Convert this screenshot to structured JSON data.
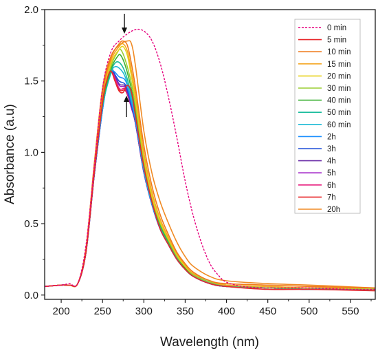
{
  "chart_data": {
    "type": "line",
    "xlabel": "Wavelength (nm)",
    "ylabel": "Absorbance (a.u)",
    "xlim": [
      180,
      580
    ],
    "ylim": [
      -0.03,
      2.0
    ],
    "x_ticks": [
      200,
      250,
      300,
      350,
      400,
      450,
      500,
      550
    ],
    "y_ticks": [
      0.0,
      0.5,
      1.0,
      1.5,
      2.0
    ],
    "x_tick_labels": [
      "200",
      "250",
      "300",
      "350",
      "400",
      "450",
      "500",
      "550"
    ],
    "y_tick_labels": [
      "0.0",
      "0.5",
      "1.0",
      "1.5",
      "2.0"
    ],
    "grid": false,
    "legend_position": "top-right",
    "series": [
      {
        "name": "0 min",
        "color": "#e6007e",
        "dashed": true,
        "x": [
          180,
          200,
          210,
          220,
          230,
          240,
          250,
          260,
          270,
          280,
          290,
          300,
          310,
          320,
          330,
          340,
          350,
          360,
          370,
          380,
          390,
          400,
          420,
          450,
          500,
          550,
          580
        ],
        "y": [
          0.06,
          0.07,
          0.08,
          0.08,
          0.35,
          0.9,
          1.45,
          1.7,
          1.78,
          1.83,
          1.86,
          1.85,
          1.78,
          1.62,
          1.38,
          1.1,
          0.8,
          0.55,
          0.36,
          0.22,
          0.14,
          0.09,
          0.06,
          0.05,
          0.05,
          0.04,
          0.04
        ]
      },
      {
        "name": "5 min",
        "color": "#e8272a",
        "x": [
          180,
          200,
          210,
          220,
          230,
          240,
          250,
          255,
          260,
          265,
          270,
          275,
          280,
          285,
          290,
          300,
          310,
          320,
          330,
          340,
          350,
          360,
          380,
          400,
          450,
          500,
          580
        ],
        "y": [
          0.06,
          0.07,
          0.07,
          0.08,
          0.3,
          0.85,
          1.35,
          1.5,
          1.57,
          1.5,
          1.43,
          1.42,
          1.47,
          1.42,
          1.25,
          0.9,
          0.65,
          0.46,
          0.35,
          0.25,
          0.18,
          0.13,
          0.08,
          0.06,
          0.04,
          0.04,
          0.03
        ]
      },
      {
        "name": "10 min",
        "color": "#ef7a1a",
        "x": [
          180,
          200,
          210,
          220,
          230,
          240,
          250,
          260,
          270,
          275,
          280,
          285,
          290,
          300,
          310,
          320,
          330,
          340,
          350,
          360,
          380,
          400,
          450,
          500,
          580
        ],
        "y": [
          0.06,
          0.07,
          0.07,
          0.08,
          0.32,
          0.9,
          1.42,
          1.66,
          1.76,
          1.78,
          1.75,
          1.62,
          1.45,
          1.05,
          0.76,
          0.56,
          0.42,
          0.3,
          0.22,
          0.16,
          0.1,
          0.08,
          0.07,
          0.06,
          0.05
        ]
      },
      {
        "name": "15 min",
        "color": "#f5a623",
        "x": [
          180,
          200,
          210,
          220,
          230,
          240,
          250,
          260,
          270,
          275,
          280,
          285,
          290,
          300,
          310,
          320,
          330,
          340,
          350,
          360,
          380,
          400,
          450,
          500,
          580
        ],
        "y": [
          0.06,
          0.07,
          0.07,
          0.08,
          0.32,
          0.88,
          1.4,
          1.64,
          1.74,
          1.76,
          1.71,
          1.57,
          1.4,
          1.0,
          0.72,
          0.53,
          0.4,
          0.29,
          0.21,
          0.15,
          0.1,
          0.07,
          0.06,
          0.05,
          0.05
        ]
      },
      {
        "name": "20 min",
        "color": "#e8d21a",
        "x": [
          180,
          200,
          210,
          220,
          230,
          240,
          250,
          260,
          270,
          275,
          280,
          285,
          290,
          300,
          310,
          320,
          330,
          340,
          350,
          360,
          380,
          400,
          450,
          500,
          580
        ],
        "y": [
          0.06,
          0.07,
          0.07,
          0.08,
          0.32,
          0.88,
          1.38,
          1.62,
          1.72,
          1.74,
          1.68,
          1.53,
          1.36,
          0.97,
          0.69,
          0.51,
          0.39,
          0.28,
          0.2,
          0.15,
          0.1,
          0.07,
          0.06,
          0.05,
          0.05
        ]
      },
      {
        "name": "30 min",
        "color": "#9acd32",
        "x": [
          180,
          200,
          210,
          220,
          230,
          240,
          250,
          260,
          268,
          272,
          278,
          285,
          290,
          300,
          310,
          320,
          330,
          340,
          350,
          360,
          380,
          400,
          450,
          500,
          580
        ],
        "y": [
          0.06,
          0.07,
          0.07,
          0.08,
          0.31,
          0.87,
          1.36,
          1.6,
          1.7,
          1.72,
          1.64,
          1.48,
          1.32,
          0.94,
          0.67,
          0.5,
          0.38,
          0.27,
          0.2,
          0.14,
          0.09,
          0.07,
          0.05,
          0.05,
          0.04
        ]
      },
      {
        "name": "40 min",
        "color": "#3cb034",
        "x": [
          180,
          200,
          210,
          220,
          230,
          240,
          250,
          260,
          268,
          272,
          278,
          285,
          290,
          300,
          310,
          320,
          330,
          340,
          350,
          360,
          380,
          400,
          450,
          500,
          580
        ],
        "y": [
          0.06,
          0.07,
          0.07,
          0.08,
          0.31,
          0.86,
          1.34,
          1.58,
          1.67,
          1.68,
          1.6,
          1.44,
          1.29,
          0.92,
          0.66,
          0.49,
          0.37,
          0.27,
          0.19,
          0.14,
          0.09,
          0.07,
          0.05,
          0.05,
          0.04
        ]
      },
      {
        "name": "50 min",
        "color": "#1abc9c",
        "x": [
          180,
          200,
          210,
          220,
          230,
          240,
          250,
          260,
          266,
          272,
          278,
          285,
          290,
          300,
          310,
          320,
          330,
          340,
          350,
          360,
          380,
          400,
          450,
          500,
          580
        ],
        "y": [
          0.06,
          0.07,
          0.07,
          0.08,
          0.31,
          0.86,
          1.33,
          1.56,
          1.63,
          1.62,
          1.55,
          1.4,
          1.26,
          0.9,
          0.65,
          0.48,
          0.36,
          0.26,
          0.19,
          0.14,
          0.09,
          0.06,
          0.05,
          0.04,
          0.04
        ]
      },
      {
        "name": "60 min",
        "color": "#1fbad6",
        "x": [
          180,
          200,
          210,
          220,
          230,
          240,
          250,
          260,
          265,
          272,
          278,
          285,
          290,
          300,
          310,
          320,
          330,
          340,
          350,
          360,
          380,
          400,
          450,
          500,
          580
        ],
        "y": [
          0.06,
          0.07,
          0.07,
          0.08,
          0.3,
          0.85,
          1.32,
          1.55,
          1.6,
          1.58,
          1.52,
          1.37,
          1.24,
          0.88,
          0.64,
          0.47,
          0.35,
          0.25,
          0.18,
          0.13,
          0.09,
          0.06,
          0.05,
          0.04,
          0.04
        ]
      },
      {
        "name": "2h",
        "color": "#1e90ff",
        "x": [
          180,
          200,
          210,
          220,
          230,
          240,
          250,
          258,
          263,
          270,
          278,
          285,
          290,
          300,
          310,
          320,
          330,
          340,
          350,
          360,
          380,
          400,
          450,
          500,
          580
        ],
        "y": [
          0.06,
          0.07,
          0.07,
          0.08,
          0.3,
          0.85,
          1.3,
          1.54,
          1.57,
          1.53,
          1.5,
          1.35,
          1.22,
          0.87,
          0.63,
          0.46,
          0.35,
          0.25,
          0.18,
          0.13,
          0.08,
          0.06,
          0.05,
          0.04,
          0.04
        ]
      },
      {
        "name": "3h",
        "color": "#1f4fd8",
        "x": [
          180,
          200,
          210,
          220,
          230,
          240,
          250,
          258,
          262,
          270,
          278,
          285,
          290,
          300,
          310,
          320,
          330,
          340,
          350,
          360,
          380,
          400,
          450,
          500,
          580
        ],
        "y": [
          0.06,
          0.07,
          0.07,
          0.08,
          0.3,
          0.84,
          1.3,
          1.55,
          1.57,
          1.5,
          1.47,
          1.33,
          1.21,
          0.87,
          0.63,
          0.46,
          0.35,
          0.25,
          0.18,
          0.13,
          0.08,
          0.06,
          0.05,
          0.04,
          0.04
        ]
      },
      {
        "name": "4h",
        "color": "#6a2ea8",
        "x": [
          180,
          200,
          210,
          220,
          230,
          240,
          250,
          258,
          262,
          270,
          278,
          285,
          290,
          300,
          310,
          320,
          330,
          340,
          350,
          360,
          380,
          400,
          450,
          500,
          580
        ],
        "y": [
          0.06,
          0.07,
          0.07,
          0.08,
          0.3,
          0.84,
          1.3,
          1.55,
          1.58,
          1.48,
          1.46,
          1.32,
          1.2,
          0.86,
          0.63,
          0.46,
          0.35,
          0.25,
          0.18,
          0.13,
          0.08,
          0.06,
          0.05,
          0.04,
          0.04
        ]
      },
      {
        "name": "5h",
        "color": "#a020c8",
        "x": [
          180,
          200,
          210,
          220,
          230,
          240,
          250,
          258,
          262,
          270,
          278,
          285,
          290,
          300,
          310,
          320,
          330,
          340,
          350,
          360,
          380,
          400,
          450,
          500,
          580
        ],
        "y": [
          0.06,
          0.07,
          0.07,
          0.08,
          0.3,
          0.84,
          1.31,
          1.56,
          1.58,
          1.47,
          1.45,
          1.31,
          1.2,
          0.86,
          0.63,
          0.46,
          0.35,
          0.25,
          0.18,
          0.13,
          0.08,
          0.06,
          0.05,
          0.04,
          0.04
        ]
      },
      {
        "name": "6h",
        "color": "#e6187a",
        "x": [
          180,
          200,
          210,
          220,
          230,
          240,
          250,
          258,
          261,
          270,
          278,
          285,
          290,
          300,
          310,
          320,
          330,
          340,
          350,
          360,
          380,
          400,
          450,
          500,
          580
        ],
        "y": [
          0.06,
          0.07,
          0.07,
          0.08,
          0.3,
          0.84,
          1.31,
          1.56,
          1.58,
          1.45,
          1.44,
          1.31,
          1.2,
          0.86,
          0.63,
          0.46,
          0.35,
          0.25,
          0.18,
          0.13,
          0.08,
          0.06,
          0.05,
          0.04,
          0.04
        ]
      },
      {
        "name": "7h",
        "color": "#e8272a",
        "x": [
          180,
          200,
          210,
          220,
          230,
          240,
          250,
          258,
          261,
          270,
          278,
          285,
          290,
          300,
          310,
          320,
          330,
          340,
          350,
          360,
          380,
          400,
          450,
          500,
          580
        ],
        "y": [
          0.06,
          0.07,
          0.07,
          0.08,
          0.3,
          0.84,
          1.31,
          1.56,
          1.58,
          1.44,
          1.43,
          1.31,
          1.2,
          0.86,
          0.63,
          0.46,
          0.35,
          0.25,
          0.18,
          0.13,
          0.08,
          0.06,
          0.05,
          0.04,
          0.04
        ]
      },
      {
        "name": "20h",
        "color": "#f08a24",
        "x": [
          180,
          200,
          210,
          220,
          230,
          240,
          250,
          260,
          270,
          280,
          285,
          290,
          300,
          310,
          320,
          330,
          340,
          350,
          360,
          380,
          400,
          450,
          500,
          580
        ],
        "y": [
          0.06,
          0.07,
          0.07,
          0.08,
          0.33,
          0.92,
          1.45,
          1.67,
          1.75,
          1.78,
          1.76,
          1.6,
          1.15,
          0.85,
          0.65,
          0.5,
          0.37,
          0.27,
          0.2,
          0.13,
          0.1,
          0.08,
          0.07,
          0.05
        ]
      }
    ]
  }
}
